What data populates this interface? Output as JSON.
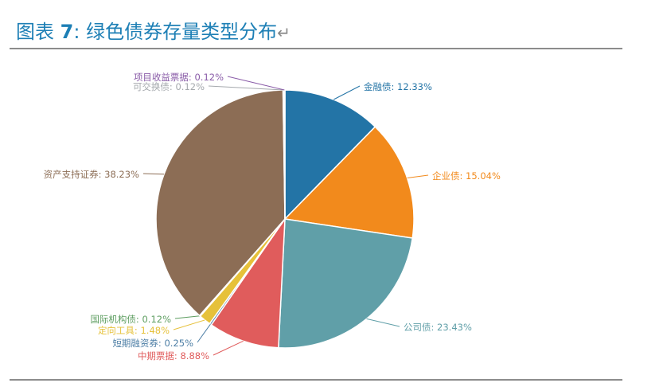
{
  "figure": {
    "prefix": "图表 ",
    "number": "7",
    "sep": ":",
    "title": "绿色债券存量类型分布",
    "return_mark": "↵"
  },
  "chart_data": {
    "type": "pie",
    "title": "",
    "slices": [
      {
        "name": "金融债",
        "value": 12.33,
        "label": "金融债: 12.33%",
        "color": "#2374a6"
      },
      {
        "name": "企业债",
        "value": 15.04,
        "label": "企业债: 15.04%",
        "color": "#f28a1c"
      },
      {
        "name": "公司债",
        "value": 23.43,
        "label": "公司债: 23.43%",
        "color": "#609fa8"
      },
      {
        "name": "中期票据",
        "value": 8.88,
        "label": "中期票据: 8.88%",
        "color": "#e05c5c"
      },
      {
        "name": "短期融资券",
        "value": 0.25,
        "label": "短期融资券: 0.25%",
        "color": "#4e7fa6"
      },
      {
        "name": "定向工具",
        "value": 1.48,
        "label": "定向工具: 1.48%",
        "color": "#e6c13a"
      },
      {
        "name": "国际机构债",
        "value": 0.12,
        "label": "国际机构债: 0.12%",
        "color": "#5e9e61"
      },
      {
        "name": "资产支持证券",
        "value": 38.23,
        "label": "资产支持证券: 38.23%",
        "color": "#8c6d55"
      },
      {
        "name": "可交换债",
        "value": 0.12,
        "label": "可交换债: 0.12%",
        "color": "#a5a9ad"
      },
      {
        "name": "项目收益票据",
        "value": 0.12,
        "label": "项目收益票据: 0.12%",
        "color": "#8a5ca8"
      }
    ]
  }
}
